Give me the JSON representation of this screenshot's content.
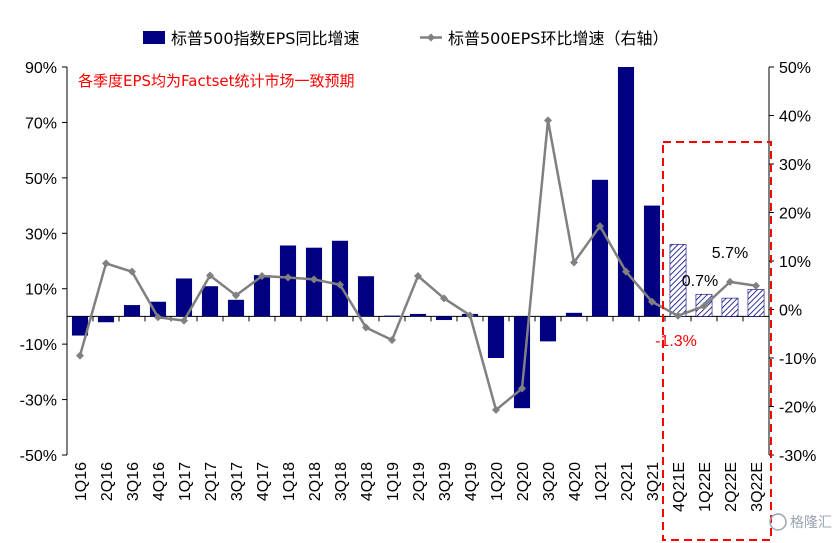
{
  "chart_data": {
    "type": "bar+line",
    "categories": [
      "1Q16",
      "2Q16",
      "3Q16",
      "4Q16",
      "1Q17",
      "2Q17",
      "3Q17",
      "4Q17",
      "1Q18",
      "2Q18",
      "3Q18",
      "4Q18",
      "1Q19",
      "2Q19",
      "3Q19",
      "4Q19",
      "1Q20",
      "2Q20",
      "3Q20",
      "4Q20",
      "1Q21",
      "2Q21",
      "3Q21",
      "4Q21E",
      "1Q22E",
      "2Q22E",
      "3Q22E"
    ],
    "series": [
      {
        "name": "标普500指数EPS同比增速",
        "kind": "bar",
        "axis": "left",
        "color": "#000080",
        "values": [
          -6.9,
          -2.1,
          4.1,
          5.3,
          13.7,
          10.9,
          6.0,
          14.9,
          25.6,
          24.8,
          27.3,
          14.5,
          0.3,
          0.9,
          -1.3,
          0.9,
          -15.0,
          -33.1,
          -9.0,
          1.3,
          49.3,
          90.0,
          40.0,
          26.0,
          8.0,
          6.6,
          9.7
        ],
        "estimate_from_index": 23
      },
      {
        "name": "标普500EPS环比增速（右轴）",
        "kind": "line",
        "axis": "right",
        "color": "#808080",
        "values": [
          -9.5,
          9.5,
          7.8,
          -1.6,
          -2.3,
          7.0,
          2.9,
          6.9,
          6.6,
          6.2,
          5.1,
          -3.7,
          -6.3,
          6.9,
          2.3,
          -1.2,
          -20.7,
          -16.3,
          39.0,
          9.7,
          17.2,
          7.8,
          1.6,
          -1.3,
          0.7,
          5.7,
          4.9
        ]
      }
    ],
    "y_left": {
      "min": -50,
      "max": 90,
      "step": 20,
      "format": "percent",
      "tick_labels": [
        "-50%",
        "-30%",
        "-10%",
        "10%",
        "30%",
        "50%",
        "70%",
        "90%"
      ]
    },
    "y_right": {
      "min": -30,
      "max": 50,
      "step": 10,
      "format": "percent",
      "tick_labels": [
        "-30%",
        "-20%",
        "-10%",
        "0%",
        "10%",
        "20%",
        "30%",
        "40%",
        "50%"
      ]
    },
    "annotations": {
      "note": "各季度EPS均为Factset统计市场一致预期",
      "point_labels": [
        {
          "series_index": 1,
          "category_index": 23,
          "text": "-1.3%",
          "color": "#ff0000"
        },
        {
          "series_index": 1,
          "category_index": 24,
          "text": "0.7%",
          "color": "#000000"
        },
        {
          "series_index": 1,
          "category_index": 25,
          "text": "5.7%",
          "color": "#000000"
        }
      ],
      "highlight": {
        "from_category": "4Q21E",
        "to_category": "3Q22E",
        "style": "dashed red box"
      }
    },
    "legend": {
      "position": "top"
    },
    "grid": false
  },
  "watermark": "格隆汇"
}
